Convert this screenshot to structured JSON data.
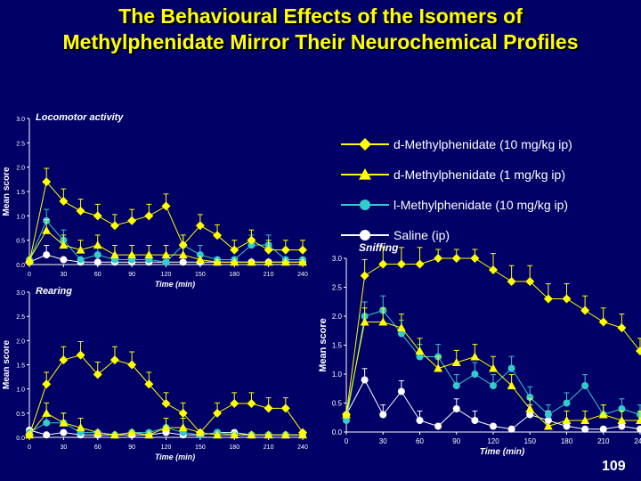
{
  "slide": {
    "title_line1": "The Behavioural Effects of the Isomers of",
    "title_line2": "Methylphenidate Mirror Their Neurochemical Profiles",
    "page_number": "109"
  },
  "colors": {
    "background": "#000066",
    "title": "#ffff00",
    "yellow": "#ffff00",
    "cyan": "#33cccc",
    "white": "#ffffff",
    "axis": "#ffffff",
    "panel_label": "#ffffff"
  },
  "legend": [
    {
      "label": "d-Methylphenidate (10 mg/kg ip)",
      "color": "#ffff00",
      "marker": "diamond"
    },
    {
      "label": "d-Methylphenidate (1 mg/kg ip)",
      "color": "#ffff00",
      "marker": "triangle"
    },
    {
      "label": "l-Methylphenidate (10 mg/kg ip)",
      "color": "#33cccc",
      "marker": "circle"
    },
    {
      "label": "Saline (ip)",
      "color": "#ffffff",
      "marker": "circle"
    }
  ],
  "chart_data": [
    {
      "type": "line",
      "title": "Locomotor activity",
      "xlabel": "Time (min)",
      "ylabel": "Mean score",
      "xlim": [
        0,
        240
      ],
      "ylim": [
        0,
        3.0
      ],
      "x_ticks": [
        "0",
        "30",
        "60",
        "90",
        "120",
        "150",
        "180",
        "210",
        "240"
      ],
      "y_ticks": [
        "0.0",
        "0.5",
        "1.0",
        "1.5",
        "2.0",
        "2.5",
        "3.0"
      ],
      "x": [
        0,
        15,
        30,
        45,
        60,
        75,
        90,
        105,
        120,
        135,
        150,
        165,
        180,
        195,
        210,
        225,
        240
      ],
      "series": [
        {
          "name": "d-Methylphenidate (10 mg/kg ip)",
          "values": [
            0.05,
            1.7,
            1.3,
            1.1,
            1.0,
            0.8,
            0.9,
            1.0,
            1.2,
            0.4,
            0.8,
            0.6,
            0.3,
            0.5,
            0.3,
            0.3,
            0.3
          ]
        },
        {
          "name": "d-Methylphenidate (1 mg/kg ip)",
          "values": [
            0.1,
            0.7,
            0.4,
            0.3,
            0.4,
            0.2,
            0.2,
            0.2,
            0.2,
            0.2,
            0.1,
            0.05,
            0.05,
            0.05,
            0.05,
            0.05,
            0.05
          ]
        },
        {
          "name": "l-Methylphenidate (10 mg/kg ip)",
          "values": [
            0.1,
            0.9,
            0.5,
            0.1,
            0.2,
            0.1,
            0.1,
            0.1,
            0.05,
            0.4,
            0.2,
            0.1,
            0.1,
            0.4,
            0.4,
            0.1,
            0.1
          ]
        },
        {
          "name": "Saline (ip)",
          "values": [
            0.05,
            0.2,
            0.1,
            0.05,
            0.05,
            0.05,
            0.05,
            0.05,
            0.05,
            0.05,
            0.05,
            0.05,
            0.05,
            0.05,
            0.05,
            0.05,
            0.05
          ]
        }
      ]
    },
    {
      "type": "line",
      "title": "Rearing",
      "xlabel": "Time (min)",
      "ylabel": "Mean score",
      "xlim": [
        0,
        240
      ],
      "ylim": [
        0,
        3.0
      ],
      "x_ticks": [
        "0",
        "30",
        "60",
        "90",
        "120",
        "150",
        "180",
        "210",
        "240"
      ],
      "y_ticks": [
        "0.0",
        "0.5",
        "1.0",
        "1.5",
        "2.0",
        "2.5",
        "3.0"
      ],
      "x": [
        0,
        15,
        30,
        45,
        60,
        75,
        90,
        105,
        120,
        135,
        150,
        165,
        180,
        195,
        210,
        225,
        240
      ],
      "series": [
        {
          "name": "d-Methylphenidate (10 mg/kg ip)",
          "values": [
            0.05,
            1.1,
            1.6,
            1.7,
            1.3,
            1.6,
            1.5,
            1.1,
            0.7,
            0.5,
            0.1,
            0.5,
            0.7,
            0.7,
            0.6,
            0.6,
            0.1
          ]
        },
        {
          "name": "d-Methylphenidate (1 mg/kg ip)",
          "values": [
            0.05,
            0.5,
            0.3,
            0.2,
            0.1,
            0.05,
            0.1,
            0.05,
            0.2,
            0.2,
            0.1,
            0.05,
            0.05,
            0.05,
            0.05,
            0.05,
            0.05
          ]
        },
        {
          "name": "l-Methylphenidate (10 mg/kg ip)",
          "values": [
            0.1,
            0.3,
            0.3,
            0.1,
            0.1,
            0.05,
            0.1,
            0.1,
            0.2,
            0.1,
            0.05,
            0.1,
            0.05,
            0.05,
            0.05,
            0.05,
            0.05
          ]
        },
        {
          "name": "Saline (ip)",
          "values": [
            0.15,
            0.05,
            0.1,
            0.05,
            0.05,
            0.05,
            0.05,
            0.05,
            0.1,
            0.05,
            0.05,
            0.1,
            0.1,
            0.05,
            0.05,
            0.05,
            0.05
          ]
        }
      ]
    },
    {
      "type": "line",
      "title": "Sniffing",
      "xlabel": "Time (min)",
      "ylabel": "Mean score",
      "xlim": [
        0,
        240
      ],
      "ylim": [
        0,
        3.0
      ],
      "x_ticks": [
        "0",
        "30",
        "60",
        "90",
        "120",
        "150",
        "180",
        "210",
        "240"
      ],
      "y_ticks": [
        "0.0",
        "0.5",
        "1.0",
        "1.5",
        "2.0",
        "2.5",
        "3.0"
      ],
      "x": [
        0,
        15,
        30,
        45,
        60,
        75,
        90,
        105,
        120,
        135,
        150,
        165,
        180,
        195,
        210,
        225,
        240
      ],
      "series": [
        {
          "name": "d-Methylphenidate (10 mg/kg ip)",
          "values": [
            0.3,
            2.7,
            2.9,
            2.9,
            2.9,
            3.0,
            3.0,
            3.0,
            2.8,
            2.6,
            2.6,
            2.3,
            2.3,
            2.1,
            1.9,
            1.8,
            1.4
          ]
        },
        {
          "name": "d-Methylphenidate (1 mg/kg ip)",
          "values": [
            0.3,
            1.9,
            1.9,
            1.8,
            1.4,
            1.1,
            1.2,
            1.3,
            1.1,
            0.8,
            0.4,
            0.1,
            0.2,
            0.2,
            0.3,
            0.2,
            0.2
          ]
        },
        {
          "name": "l-Methylphenidate (10 mg/kg ip)",
          "values": [
            0.2,
            2.0,
            2.1,
            1.7,
            1.3,
            1.3,
            0.8,
            1.0,
            0.8,
            1.1,
            0.6,
            0.3,
            0.5,
            0.8,
            0.3,
            0.4,
            0.3
          ]
        },
        {
          "name": "Saline (ip)",
          "values": [
            0.3,
            0.9,
            0.3,
            0.7,
            0.2,
            0.1,
            0.4,
            0.2,
            0.1,
            0.05,
            0.3,
            0.2,
            0.1,
            0.05,
            0.05,
            0.1,
            0.05
          ]
        }
      ]
    }
  ]
}
